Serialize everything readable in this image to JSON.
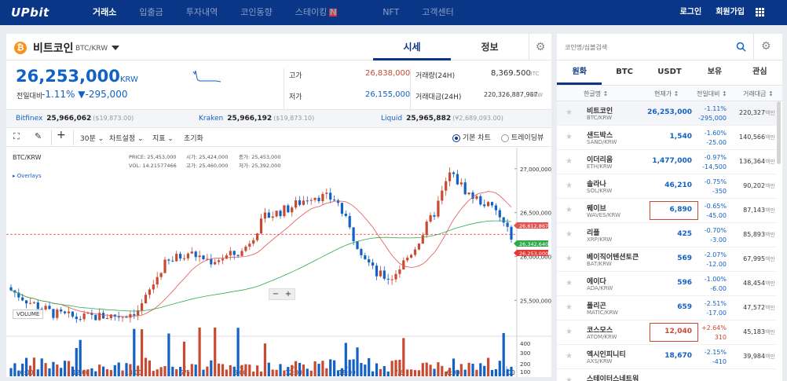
{
  "nav": {
    "logo": "UPbit",
    "menu": [
      "거래소",
      "입출금",
      "투자내역",
      "코인동향",
      "스테이킹",
      "NFT",
      "고객센터"
    ],
    "staking_badge": "N",
    "login": "로그인",
    "signup": "회원가입"
  },
  "coin": {
    "name": "비트코인",
    "code": "BTC/KRW",
    "tab_price": "시세",
    "tab_info": "정보",
    "price": "26,253,000",
    "price_unit": "KRW",
    "change_label": "전일대비",
    "change_pct": "-1.11%",
    "change_amt": "▼-295,000",
    "high_label": "고가",
    "high": "26,838,000",
    "low_label": "저가",
    "low": "26,155,000",
    "volume_label": "거래량(24H)",
    "volume": "8,369.500",
    "volume_unit": "BTC",
    "value_label": "거래대금(24H)",
    "value": "220,326,887,987",
    "value_unit": "KRW"
  },
  "exchanges": [
    {
      "name": "Bitfinex",
      "price": "25,966,062",
      "usd": "($19,873.00)"
    },
    {
      "name": "Kraken",
      "price": "25,966,192",
      "usd": "($19,873.10)"
    },
    {
      "name": "Liquid",
      "price": "25,965,882",
      "usd": "(¥2,689,093.00)"
    }
  ],
  "toolbar": {
    "interval": "30분",
    "chart_settings": "차트설정",
    "indicator": "지표",
    "reset": "초기화",
    "basic_chart": "기본 차트",
    "tradingview": "트레이딩뷰"
  },
  "chart_info": {
    "symbol": "BTC/KRW",
    "overlays": "▸ Overlays",
    "price_label": "PRICE:",
    "price": "25,453,000",
    "vol_label": "VOL:",
    "vol": "14.21577466",
    "open_label": "시가:",
    "open": "25,424,000",
    "high_label": "고가:",
    "high": "25,460,000",
    "close_label": "종가:",
    "close": "25,453,000",
    "low_label": "저가:",
    "low": "25,392,000",
    "volume_title": "VOLUME"
  },
  "chart_data": {
    "type": "candlestick",
    "y_ticks": [
      "27,000,000",
      "26,500,000",
      "26,000,000",
      "25,500,000"
    ],
    "volume_ticks": [
      "400",
      "300",
      "200",
      "100"
    ],
    "x_ticks": [
      "6:00",
      "12:00",
      "18:00",
      "7/5",
      "6:00",
      "12:00",
      "18:00",
      "7/6",
      "6:00",
      "12:00"
    ],
    "price_tags": [
      {
        "value": "26,612,867",
        "color": "#e55353"
      },
      {
        "value": "26,342,640",
        "color": "#31a94a"
      },
      {
        "value": "26,253,000",
        "color": "#e53935"
      }
    ],
    "ylim": [
      25200000,
      27150000
    ],
    "zoom_minus": "−",
    "zoom_plus": "+"
  },
  "side": {
    "search_placeholder": "코인명/심볼검색",
    "tabs": [
      "원화",
      "BTC",
      "USDT",
      "보유",
      "관심"
    ],
    "headers": [
      "한글명 ↕",
      "현재가 ↕",
      "전일대비 ↕",
      "거래대금 ↕"
    ],
    "million": "백만",
    "coins": [
      {
        "name": "비트코인",
        "code": "BTC/KRW",
        "price": "26,253,000",
        "pct": "-1.11%",
        "diff": "-295,000",
        "vol": "220,327",
        "dir": "down"
      },
      {
        "name": "샌드박스",
        "code": "SAND/KRW",
        "price": "1,540",
        "pct": "-1.60%",
        "diff": "-25.00",
        "vol": "140,566",
        "dir": "down"
      },
      {
        "name": "이더리움",
        "code": "ETH/KRW",
        "price": "1,477,000",
        "pct": "-0.97%",
        "diff": "-14,500",
        "vol": "136,364",
        "dir": "down"
      },
      {
        "name": "솔라나",
        "code": "SOL/KRW",
        "price": "46,210",
        "pct": "-0.75%",
        "diff": "-350",
        "vol": "90,202",
        "dir": "down"
      },
      {
        "name": "웨이브",
        "code": "WAVES/KRW",
        "price": "6,890",
        "pct": "-0.65%",
        "diff": "-45.00",
        "vol": "87,143",
        "dir": "down"
      },
      {
        "name": "리플",
        "code": "XRP/KRW",
        "price": "425",
        "pct": "-0.70%",
        "diff": "-3.00",
        "vol": "85,893",
        "dir": "down"
      },
      {
        "name": "베이직어텐션토큰",
        "code": "BAT/KRW",
        "price": "569",
        "pct": "-2.07%",
        "diff": "-12.00",
        "vol": "67,995",
        "dir": "down"
      },
      {
        "name": "에이다",
        "code": "ADA/KRW",
        "price": "596",
        "pct": "-1.00%",
        "diff": "-6.00",
        "vol": "48,454",
        "dir": "down"
      },
      {
        "name": "폴리곤",
        "code": "MATIC/KRW",
        "price": "659",
        "pct": "-2.51%",
        "diff": "-17.00",
        "vol": "47,572",
        "dir": "down"
      },
      {
        "name": "코스모스",
        "code": "ATOM/KRW",
        "price": "12,040",
        "pct": "+2.64%",
        "diff": "310",
        "vol": "45,183",
        "dir": "up"
      },
      {
        "name": "엑시인피니티",
        "code": "AXS/KRW",
        "price": "18,670",
        "pct": "-2.15%",
        "diff": "-410",
        "vol": "39,984",
        "dir": "down"
      },
      {
        "name": "스테이터스네트워",
        "code": "",
        "price": "",
        "pct": "",
        "diff": "",
        "vol": "",
        "dir": "up"
      }
    ]
  },
  "colors": {
    "nav": "#093687",
    "up": "#c84a31",
    "down": "#1261c4"
  }
}
